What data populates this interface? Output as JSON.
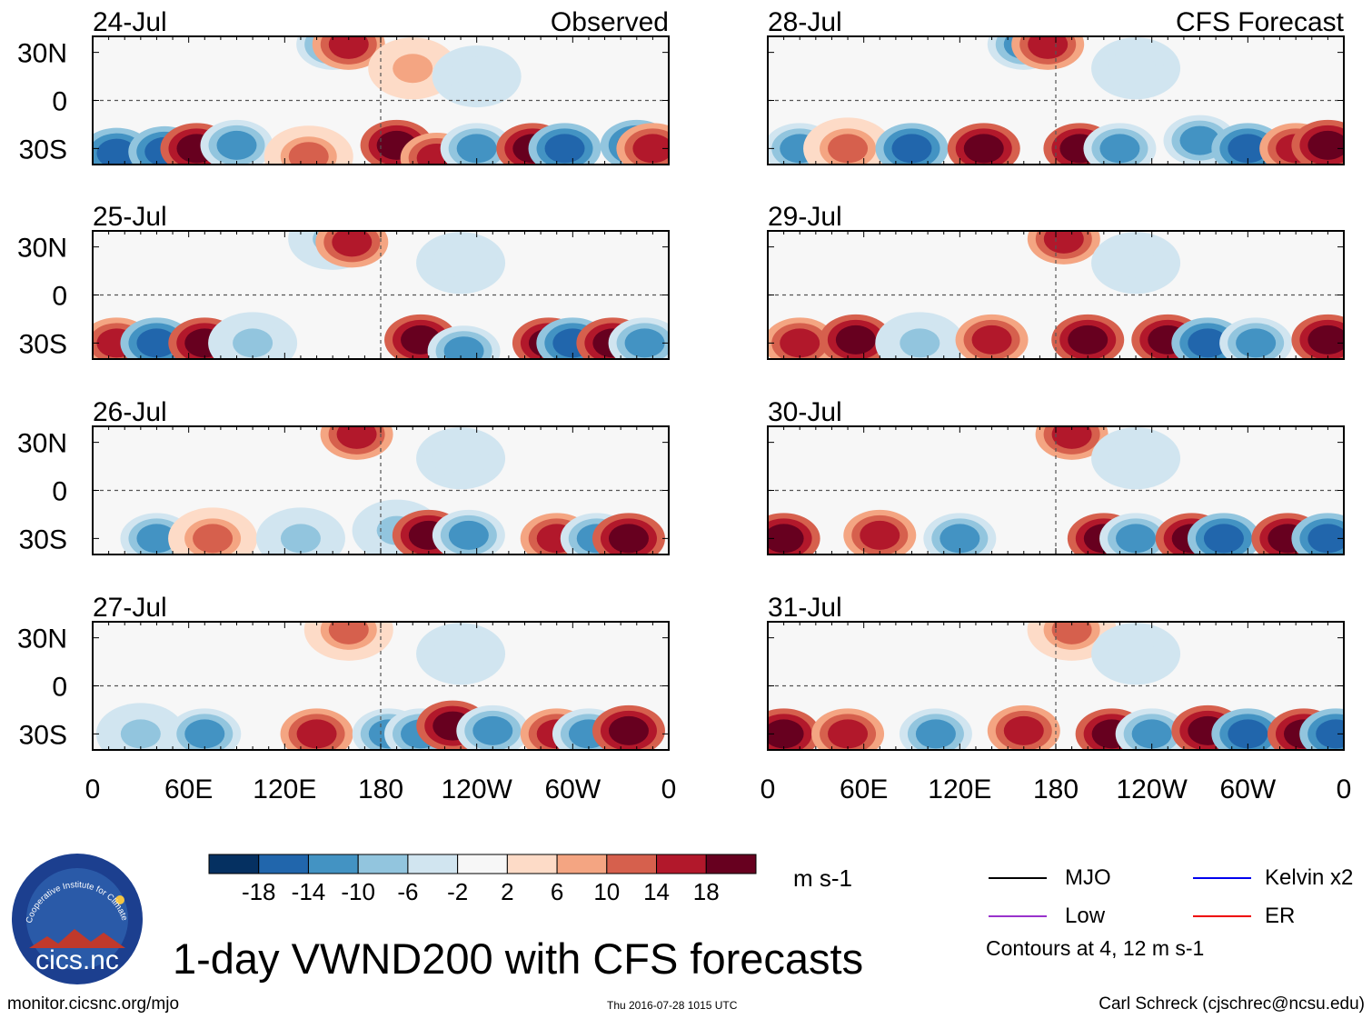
{
  "title": "1-day VWND200 with CFS forecasts",
  "footer": {
    "url": "monitor.cicsnc.org/mjo",
    "timestamp": "Thu 2016-07-28 1015 UTC",
    "author": "Carl Schreck (cjschrec@ncsu.edu)"
  },
  "logo": {
    "text": "cics.nc",
    "ring_text": "Cooperative Institute for Climate and Satellites"
  },
  "colorbar": {
    "units": "m s-1",
    "tick_labels": [
      "-18",
      "-14",
      "-10",
      "-6",
      "-2",
      "2",
      "6",
      "10",
      "14",
      "18"
    ],
    "colors": [
      "#053061",
      "#2166ac",
      "#4393c3",
      "#92c5de",
      "#d1e5f0",
      "#f7f7f7",
      "#fddbc7",
      "#f4a582",
      "#d6604d",
      "#b2182b",
      "#67001f"
    ]
  },
  "legend": {
    "items": [
      {
        "label": "MJO",
        "color": "#000000"
      },
      {
        "label": "Kelvin x2",
        "color": "#0000ee"
      },
      {
        "label": "Low",
        "color": "#9932cc"
      },
      {
        "label": "ER",
        "color": "#ee0000"
      }
    ],
    "note": "Contours at 4, 12 m s-1"
  },
  "chart_data": {
    "type": "heatmap",
    "variable": "VWND200",
    "xlim_deg_east": [
      0,
      360
    ],
    "ylim_deg": [
      -40,
      40
    ],
    "x_tick_labels": [
      "0",
      "60E",
      "120E",
      "180",
      "120W",
      "60W",
      "0"
    ],
    "y_tick_labels": [
      "30N",
      "0",
      "30S"
    ],
    "columns": [
      {
        "header": "Observed",
        "panels": [
          {
            "date": "24-Jul",
            "anomalies": [
              {
                "lon": 15,
                "lat": -33,
                "v": -18
              },
              {
                "lon": 45,
                "lat": -32,
                "v": -18
              },
              {
                "lon": 65,
                "lat": -30,
                "v": 18
              },
              {
                "lon": 90,
                "lat": -28,
                "v": -14
              },
              {
                "lon": 135,
                "lat": -35,
                "v": 10
              },
              {
                "lon": 150,
                "lat": 35,
                "v": -14
              },
              {
                "lon": 160,
                "lat": 35,
                "v": 14
              },
              {
                "lon": 190,
                "lat": -28,
                "v": 18
              },
              {
                "lon": 215,
                "lat": -36,
                "v": 14
              },
              {
                "lon": 240,
                "lat": -30,
                "v": -14
              },
              {
                "lon": 275,
                "lat": -30,
                "v": 18
              },
              {
                "lon": 295,
                "lat": -30,
                "v": -18
              },
              {
                "lon": 340,
                "lat": -28,
                "v": -18
              },
              {
                "lon": 350,
                "lat": -30,
                "v": 14
              },
              {
                "lon": 200,
                "lat": 20,
                "v": 6
              },
              {
                "lon": 240,
                "lat": 15,
                "v": -6
              }
            ]
          },
          {
            "date": "25-Jul",
            "anomalies": [
              {
                "lon": 15,
                "lat": -30,
                "v": 14
              },
              {
                "lon": 40,
                "lat": -30,
                "v": -18
              },
              {
                "lon": 70,
                "lat": -30,
                "v": 18
              },
              {
                "lon": 100,
                "lat": -30,
                "v": -10
              },
              {
                "lon": 150,
                "lat": 35,
                "v": -10
              },
              {
                "lon": 162,
                "lat": 33,
                "v": 14
              },
              {
                "lon": 205,
                "lat": -28,
                "v": 18
              },
              {
                "lon": 232,
                "lat": -35,
                "v": -14
              },
              {
                "lon": 285,
                "lat": -30,
                "v": 18
              },
              {
                "lon": 300,
                "lat": -30,
                "v": -18
              },
              {
                "lon": 325,
                "lat": -30,
                "v": 18
              },
              {
                "lon": 345,
                "lat": -30,
                "v": -14
              },
              {
                "lon": 230,
                "lat": 20,
                "v": -6
              }
            ]
          },
          {
            "date": "26-Jul",
            "anomalies": [
              {
                "lon": 40,
                "lat": -30,
                "v": -14
              },
              {
                "lon": 75,
                "lat": -30,
                "v": 10
              },
              {
                "lon": 130,
                "lat": -30,
                "v": -10
              },
              {
                "lon": 165,
                "lat": 35,
                "v": 14
              },
              {
                "lon": 190,
                "lat": -25,
                "v": -10
              },
              {
                "lon": 210,
                "lat": -28,
                "v": 18
              },
              {
                "lon": 235,
                "lat": -28,
                "v": -14
              },
              {
                "lon": 290,
                "lat": -30,
                "v": 14
              },
              {
                "lon": 315,
                "lat": -30,
                "v": -14
              },
              {
                "lon": 335,
                "lat": -30,
                "v": 18
              },
              {
                "lon": 230,
                "lat": 20,
                "v": -6
              }
            ]
          },
          {
            "date": "27-Jul",
            "anomalies": [
              {
                "lon": 30,
                "lat": -30,
                "v": -10
              },
              {
                "lon": 70,
                "lat": -30,
                "v": -14
              },
              {
                "lon": 140,
                "lat": -30,
                "v": 14
              },
              {
                "lon": 160,
                "lat": 35,
                "v": 10
              },
              {
                "lon": 185,
                "lat": -30,
                "v": -14
              },
              {
                "lon": 205,
                "lat": -30,
                "v": -14
              },
              {
                "lon": 225,
                "lat": -25,
                "v": 18
              },
              {
                "lon": 250,
                "lat": -28,
                "v": -14
              },
              {
                "lon": 290,
                "lat": -30,
                "v": 14
              },
              {
                "lon": 310,
                "lat": -30,
                "v": -14
              },
              {
                "lon": 335,
                "lat": -28,
                "v": 18
              },
              {
                "lon": 230,
                "lat": 20,
                "v": -6
              }
            ]
          }
        ]
      },
      {
        "header": "CFS Forecast",
        "panels": [
          {
            "date": "28-Jul",
            "anomalies": [
              {
                "lon": 20,
                "lat": -30,
                "v": -14
              },
              {
                "lon": 50,
                "lat": -30,
                "v": 10
              },
              {
                "lon": 90,
                "lat": -30,
                "v": -18
              },
              {
                "lon": 135,
                "lat": -30,
                "v": 18
              },
              {
                "lon": 160,
                "lat": 35,
                "v": -14
              },
              {
                "lon": 175,
                "lat": 35,
                "v": 14
              },
              {
                "lon": 195,
                "lat": -30,
                "v": 18
              },
              {
                "lon": 220,
                "lat": -30,
                "v": -14
              },
              {
                "lon": 270,
                "lat": -25,
                "v": -14
              },
              {
                "lon": 300,
                "lat": -30,
                "v": -18
              },
              {
                "lon": 330,
                "lat": -30,
                "v": 14
              },
              {
                "lon": 350,
                "lat": -28,
                "v": 18
              },
              {
                "lon": 230,
                "lat": 20,
                "v": -6
              }
            ]
          },
          {
            "date": "29-Jul",
            "anomalies": [
              {
                "lon": 20,
                "lat": -30,
                "v": 14
              },
              {
                "lon": 55,
                "lat": -28,
                "v": 18
              },
              {
                "lon": 95,
                "lat": -30,
                "v": -10
              },
              {
                "lon": 140,
                "lat": -28,
                "v": 14
              },
              {
                "lon": 185,
                "lat": 35,
                "v": 14
              },
              {
                "lon": 200,
                "lat": -28,
                "v": 18
              },
              {
                "lon": 250,
                "lat": -28,
                "v": 18
              },
              {
                "lon": 275,
                "lat": -30,
                "v": -18
              },
              {
                "lon": 305,
                "lat": -30,
                "v": -14
              },
              {
                "lon": 350,
                "lat": -28,
                "v": 18
              },
              {
                "lon": 230,
                "lat": 20,
                "v": -6
              }
            ]
          },
          {
            "date": "30-Jul",
            "anomalies": [
              {
                "lon": 10,
                "lat": -30,
                "v": 18
              },
              {
                "lon": 70,
                "lat": -28,
                "v": 14
              },
              {
                "lon": 120,
                "lat": -30,
                "v": -14
              },
              {
                "lon": 190,
                "lat": 35,
                "v": 14
              },
              {
                "lon": 210,
                "lat": -30,
                "v": 18
              },
              {
                "lon": 230,
                "lat": -30,
                "v": -14
              },
              {
                "lon": 265,
                "lat": -30,
                "v": 18
              },
              {
                "lon": 285,
                "lat": -30,
                "v": -18
              },
              {
                "lon": 325,
                "lat": -30,
                "v": 18
              },
              {
                "lon": 350,
                "lat": -30,
                "v": -18
              },
              {
                "lon": 230,
                "lat": 20,
                "v": -6
              }
            ]
          },
          {
            "date": "31-Jul",
            "anomalies": [
              {
                "lon": 10,
                "lat": -30,
                "v": 18
              },
              {
                "lon": 50,
                "lat": -30,
                "v": 14
              },
              {
                "lon": 105,
                "lat": -30,
                "v": -14
              },
              {
                "lon": 160,
                "lat": -28,
                "v": 14
              },
              {
                "lon": 190,
                "lat": 35,
                "v": 10
              },
              {
                "lon": 215,
                "lat": -30,
                "v": 18
              },
              {
                "lon": 240,
                "lat": -30,
                "v": -14
              },
              {
                "lon": 275,
                "lat": -28,
                "v": 18
              },
              {
                "lon": 300,
                "lat": -30,
                "v": -18
              },
              {
                "lon": 335,
                "lat": -30,
                "v": 18
              },
              {
                "lon": 355,
                "lat": -30,
                "v": -18
              },
              {
                "lon": 230,
                "lat": 20,
                "v": -6
              }
            ]
          }
        ]
      }
    ]
  }
}
